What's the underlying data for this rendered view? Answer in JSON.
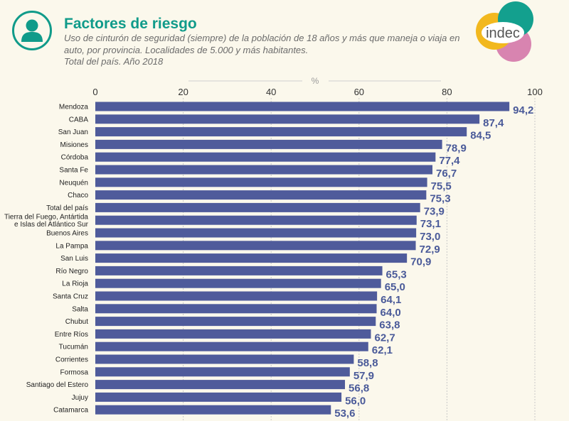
{
  "header": {
    "title": "Factores de riesgo",
    "subtitle": "Uso de cinturón de seguridad (siempre) de la población de 18 años y más que maneja o viaja en auto, por provincia. Localidades de 5.000 y más habitantes.",
    "subtitle2": "Total del país. Año 2018",
    "logo_text": "indec"
  },
  "colors": {
    "title": "#109b8a",
    "bar": "#4f5b9b",
    "value_label": "#4a5a99",
    "background": "#fbf8ec"
  },
  "chart_data": {
    "type": "bar",
    "orientation": "horizontal",
    "unit_label": "%",
    "xlim": [
      0,
      100
    ],
    "xticks": [
      0,
      20,
      40,
      60,
      80,
      100
    ],
    "grid": true,
    "categories": [
      [
        "Mendoza"
      ],
      [
        "CABA"
      ],
      [
        "San Juan"
      ],
      [
        "Misiones"
      ],
      [
        "Córdoba"
      ],
      [
        "Santa Fe"
      ],
      [
        "Neuquén"
      ],
      [
        "Chaco"
      ],
      [
        "Total del país"
      ],
      [
        "Tierra del Fuego, Antártida",
        "e Islas del Atlántico Sur"
      ],
      [
        "Buenos Aires"
      ],
      [
        "La Pampa"
      ],
      [
        "San Luis"
      ],
      [
        "Río Negro"
      ],
      [
        "La Rioja"
      ],
      [
        "Santa Cruz"
      ],
      [
        "Salta"
      ],
      [
        "Chubut"
      ],
      [
        "Entre Ríos"
      ],
      [
        "Tucumán"
      ],
      [
        "Corrientes"
      ],
      [
        "Formosa"
      ],
      [
        "Santiago del Estero"
      ],
      [
        "Jujuy"
      ],
      [
        "Catamarca"
      ]
    ],
    "values": [
      94.2,
      87.4,
      84.5,
      78.9,
      77.4,
      76.7,
      75.5,
      75.3,
      73.9,
      73.1,
      73.0,
      72.9,
      70.9,
      65.3,
      65.0,
      64.1,
      64.0,
      63.8,
      62.7,
      62.1,
      58.8,
      57.9,
      56.8,
      56.0,
      53.6
    ],
    "value_labels": [
      "94,2",
      "87,4",
      "84,5",
      "78,9",
      "77,4",
      "76,7",
      "75,5",
      "75,3",
      "73,9",
      "73,1",
      "73,0",
      "72,9",
      "70,9",
      "65,3",
      "65,0",
      "64,1",
      "64,0",
      "63,8",
      "62,7",
      "62,1",
      "58,8",
      "57,9",
      "56,8",
      "56,0",
      "53,6"
    ]
  }
}
